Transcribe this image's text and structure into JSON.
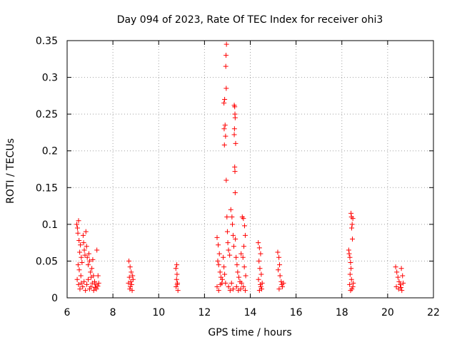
{
  "chart_data": {
    "type": "scatter",
    "title": "Day 094 of 2023, Rate Of TEC Index for receiver ohi3",
    "xlabel": "GPS time / hours",
    "ylabel": "ROTI / TECUs",
    "xlim": [
      6,
      22
    ],
    "ylim": [
      0,
      0.35
    ],
    "x_ticks": [
      "6",
      "8",
      "10",
      "12",
      "14",
      "16",
      "18",
      "20",
      "22"
    ],
    "y_ticks": [
      "0",
      "0.05",
      "0.1",
      "0.15",
      "0.2",
      "0.25",
      "0.3",
      "0.35"
    ],
    "grid": true,
    "legend": "none",
    "marker": "plus",
    "colors": {
      "series": "#ff0000"
    },
    "series": [
      {
        "points": [
          [
            6.42,
            0.1
          ],
          [
            6.45,
            0.095
          ],
          [
            6.5,
            0.105
          ],
          [
            6.47,
            0.088
          ],
          [
            6.52,
            0.078
          ],
          [
            6.55,
            0.062
          ],
          [
            6.58,
            0.072
          ],
          [
            6.62,
            0.055
          ],
          [
            6.48,
            0.045
          ],
          [
            6.53,
            0.038
          ],
          [
            6.6,
            0.03
          ],
          [
            6.65,
            0.048
          ],
          [
            6.7,
            0.085
          ],
          [
            6.72,
            0.075
          ],
          [
            6.75,
            0.065
          ],
          [
            6.78,
            0.058
          ],
          [
            6.82,
            0.09
          ],
          [
            6.85,
            0.07
          ],
          [
            6.88,
            0.055
          ],
          [
            6.92,
            0.045
          ],
          [
            6.95,
            0.06
          ],
          [
            6.98,
            0.05
          ],
          [
            7.02,
            0.035
          ],
          [
            7.05,
            0.028
          ],
          [
            7.08,
            0.04
          ],
          [
            7.12,
            0.052
          ],
          [
            7.15,
            0.03
          ],
          [
            7.2,
            0.022
          ],
          [
            7.25,
            0.018
          ],
          [
            7.3,
            0.065
          ],
          [
            7.35,
            0.03
          ],
          [
            7.38,
            0.02
          ],
          [
            6.44,
            0.025
          ],
          [
            6.5,
            0.018
          ],
          [
            6.56,
            0.012
          ],
          [
            6.62,
            0.02
          ],
          [
            6.68,
            0.015
          ],
          [
            6.74,
            0.022
          ],
          [
            6.8,
            0.01
          ],
          [
            6.86,
            0.018
          ],
          [
            6.92,
            0.025
          ],
          [
            6.98,
            0.012
          ],
          [
            7.04,
            0.015
          ],
          [
            7.1,
            0.02
          ],
          [
            7.16,
            0.01
          ],
          [
            7.22,
            0.014
          ],
          [
            7.28,
            0.012
          ],
          [
            7.34,
            0.016
          ],
          [
            8.7,
            0.05
          ],
          [
            8.75,
            0.042
          ],
          [
            8.8,
            0.035
          ],
          [
            8.72,
            0.028
          ],
          [
            8.78,
            0.022
          ],
          [
            8.82,
            0.018
          ],
          [
            8.74,
            0.012
          ],
          [
            8.86,
            0.03
          ],
          [
            8.68,
            0.02
          ],
          [
            8.84,
            0.01
          ],
          [
            8.76,
            0.015
          ],
          [
            8.88,
            0.025
          ],
          [
            10.75,
            0.04
          ],
          [
            10.8,
            0.032
          ],
          [
            10.78,
            0.025
          ],
          [
            10.82,
            0.02
          ],
          [
            10.76,
            0.015
          ],
          [
            10.84,
            0.01
          ],
          [
            10.79,
            0.045
          ],
          [
            10.81,
            0.018
          ],
          [
            12.55,
            0.082
          ],
          [
            12.6,
            0.072
          ],
          [
            12.65,
            0.06
          ],
          [
            12.58,
            0.05
          ],
          [
            12.62,
            0.045
          ],
          [
            12.68,
            0.035
          ],
          [
            12.72,
            0.028
          ],
          [
            12.76,
            0.02
          ],
          [
            12.55,
            0.015
          ],
          [
            12.62,
            0.01
          ],
          [
            12.7,
            0.018
          ],
          [
            12.78,
            0.025
          ],
          [
            12.82,
            0.055
          ],
          [
            12.85,
            0.042
          ],
          [
            12.88,
            0.032
          ],
          [
            12.92,
            0.02
          ],
          [
            12.85,
            0.265
          ],
          [
            12.88,
            0.27
          ],
          [
            12.9,
            0.235
          ],
          [
            12.86,
            0.23
          ],
          [
            12.92,
            0.22
          ],
          [
            12.87,
            0.208
          ],
          [
            12.95,
            0.16
          ],
          [
            12.96,
            0.345
          ],
          [
            12.94,
            0.33
          ],
          [
            12.93,
            0.315
          ],
          [
            12.95,
            0.285
          ],
          [
            12.98,
            0.11
          ],
          [
            13.0,
            0.09
          ],
          [
            13.02,
            0.075
          ],
          [
            13.05,
            0.065
          ],
          [
            13.1,
            0.058
          ],
          [
            13.15,
            0.12
          ],
          [
            13.2,
            0.11
          ],
          [
            13.22,
            0.1
          ],
          [
            13.25,
            0.085
          ],
          [
            13.28,
            0.07
          ],
          [
            13.3,
            0.262
          ],
          [
            13.32,
            0.26
          ],
          [
            13.33,
            0.25
          ],
          [
            13.34,
            0.245
          ],
          [
            13.31,
            0.23
          ],
          [
            13.3,
            0.222
          ],
          [
            13.36,
            0.21
          ],
          [
            13.32,
            0.178
          ],
          [
            13.33,
            0.172
          ],
          [
            13.34,
            0.143
          ],
          [
            13.35,
            0.08
          ],
          [
            13.38,
            0.055
          ],
          [
            13.42,
            0.045
          ],
          [
            13.45,
            0.035
          ],
          [
            13.5,
            0.028
          ],
          [
            13.55,
            0.022
          ],
          [
            13.6,
            0.06
          ],
          [
            13.65,
            0.11
          ],
          [
            13.7,
            0.108
          ],
          [
            13.75,
            0.098
          ],
          [
            13.78,
            0.085
          ],
          [
            13.72,
            0.07
          ],
          [
            13.68,
            0.055
          ],
          [
            13.74,
            0.042
          ],
          [
            13.8,
            0.03
          ],
          [
            13.62,
            0.02
          ],
          [
            13.7,
            0.015
          ],
          [
            13.05,
            0.015
          ],
          [
            13.12,
            0.01
          ],
          [
            13.18,
            0.02
          ],
          [
            13.25,
            0.012
          ],
          [
            13.4,
            0.015
          ],
          [
            13.48,
            0.01
          ],
          [
            13.58,
            0.012
          ],
          [
            13.78,
            0.01
          ],
          [
            14.35,
            0.075
          ],
          [
            14.4,
            0.068
          ],
          [
            14.45,
            0.06
          ],
          [
            14.38,
            0.05
          ],
          [
            14.42,
            0.04
          ],
          [
            14.48,
            0.032
          ],
          [
            14.36,
            0.025
          ],
          [
            14.44,
            0.018
          ],
          [
            14.5,
            0.012
          ],
          [
            14.4,
            0.01
          ],
          [
            14.46,
            0.015
          ],
          [
            14.52,
            0.02
          ],
          [
            15.2,
            0.062
          ],
          [
            15.25,
            0.055
          ],
          [
            15.28,
            0.045
          ],
          [
            15.22,
            0.038
          ],
          [
            15.3,
            0.03
          ],
          [
            15.35,
            0.022
          ],
          [
            15.4,
            0.015
          ],
          [
            15.26,
            0.012
          ],
          [
            15.38,
            0.018
          ],
          [
            15.45,
            0.02
          ],
          [
            18.3,
            0.065
          ],
          [
            18.32,
            0.06
          ],
          [
            18.35,
            0.055
          ],
          [
            18.38,
            0.048
          ],
          [
            18.4,
            0.04
          ],
          [
            18.36,
            0.032
          ],
          [
            18.42,
            0.025
          ],
          [
            18.34,
            0.018
          ],
          [
            18.44,
            0.012
          ],
          [
            18.4,
            0.115
          ],
          [
            18.42,
            0.11
          ],
          [
            18.45,
            0.1
          ],
          [
            18.48,
            0.108
          ],
          [
            18.43,
            0.095
          ],
          [
            18.46,
            0.08
          ],
          [
            18.5,
            0.02
          ],
          [
            18.38,
            0.01
          ],
          [
            18.48,
            0.015
          ],
          [
            20.35,
            0.042
          ],
          [
            20.4,
            0.035
          ],
          [
            20.45,
            0.028
          ],
          [
            20.5,
            0.022
          ],
          [
            20.55,
            0.018
          ],
          [
            20.6,
            0.04
          ],
          [
            20.65,
            0.03
          ],
          [
            20.38,
            0.015
          ],
          [
            20.48,
            0.012
          ],
          [
            20.58,
            0.014
          ],
          [
            20.68,
            0.02
          ],
          [
            20.62,
            0.01
          ]
        ]
      }
    ]
  }
}
